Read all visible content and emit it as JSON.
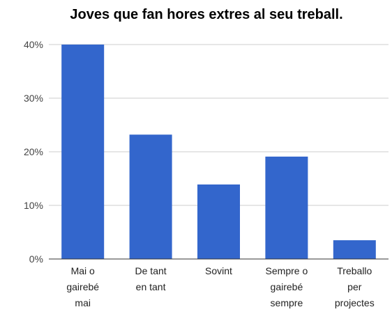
{
  "chart_data": {
    "type": "bar",
    "title": "Joves que fan hores extres al seu treball.",
    "categories": [
      [
        "Mai o",
        "gairebé",
        "mai"
      ],
      [
        "De tant",
        "en tant"
      ],
      [
        "Sovint"
      ],
      [
        "Sempre o",
        "gairebé",
        "sempre"
      ],
      [
        "Treballo",
        "per",
        "projectes"
      ]
    ],
    "values": [
      40,
      23.2,
      13.9,
      19.1,
      3.5
    ],
    "ylim": [
      0,
      40
    ],
    "yticks": [
      0,
      10,
      20,
      30,
      40
    ],
    "ytick_labels": [
      "0%",
      "10%",
      "20%",
      "30%",
      "40%"
    ],
    "grid": true,
    "legend": "none",
    "bar_color": "#3366cc",
    "grid_color": "#cccccc",
    "axis_color": "#333333"
  }
}
